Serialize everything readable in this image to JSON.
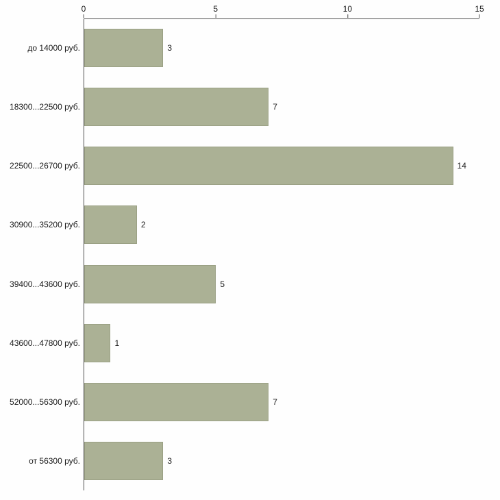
{
  "chart_data": {
    "type": "bar",
    "orientation": "horizontal",
    "title": "",
    "xlabel": "",
    "ylabel": "",
    "categories": [
      "до 14000 руб.",
      "18300...22500 руб.",
      "22500...26700 руб.",
      "30900...35200 руб.",
      "39400...43600 руб.",
      "43600...47800 руб.",
      "52000...56300 руб.",
      "от 56300 руб."
    ],
    "values": [
      3,
      7,
      14,
      2,
      5,
      1,
      7,
      3
    ],
    "xlim": [
      0,
      15
    ],
    "x_ticks": [
      0,
      5,
      10,
      15
    ],
    "grid": false,
    "legend": false,
    "colors": {
      "bar_fill": "#abb195",
      "bar_border": "#9aa084",
      "axis": "#4d4d4d",
      "text": "#1a1a1a",
      "background": "#fefefe"
    }
  }
}
